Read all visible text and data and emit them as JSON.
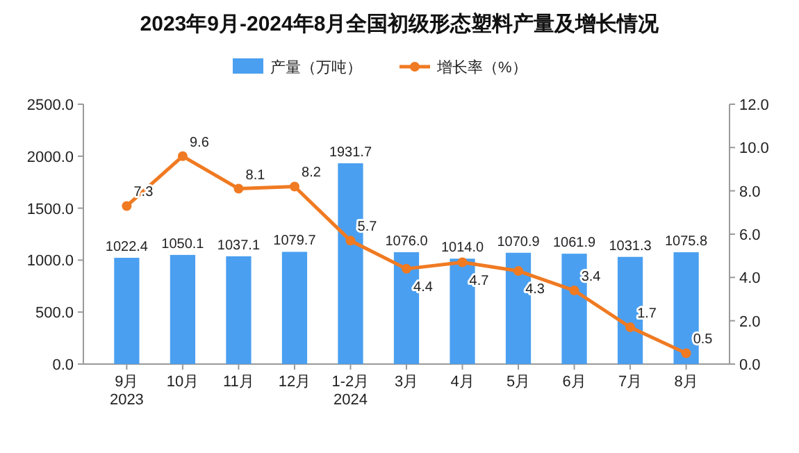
{
  "chart_data": {
    "type": "bar",
    "title": "2023年9月-2024年8月全国初级形态塑料产量及增长情况",
    "categories": [
      "9月\n2023",
      "10月",
      "11月",
      "12月",
      "1-2月\n2024",
      "3月",
      "4月",
      "5月",
      "6月",
      "7月",
      "8月"
    ],
    "series": [
      {
        "name": "产量（万吨）",
        "color": "#4a9ff0",
        "values": [
          1022.4,
          1050.1,
          1037.1,
          1079.7,
          1931.7,
          1076.0,
          1014.0,
          1070.9,
          1061.9,
          1031.3,
          1075.8
        ],
        "value_labels": [
          "1022.4",
          "1050.1",
          "1037.1",
          "1079.7",
          "1931.7",
          "1076.0",
          "1014.0",
          "1070.9",
          "1061.9",
          "1031.3",
          "1075.8"
        ]
      },
      {
        "name": "增长率（%）",
        "type": "line",
        "axis": "y2",
        "color": "#f07a22",
        "values": [
          7.3,
          9.6,
          8.1,
          8.2,
          5.7,
          4.4,
          4.7,
          4.3,
          3.4,
          1.7,
          0.5
        ],
        "value_labels": [
          "7.3",
          "9.6",
          "8.1",
          "8.2",
          "5.7",
          "4.4",
          "4.7",
          "4.3",
          "3.4",
          "1.7",
          "0.5"
        ]
      }
    ],
    "ylim": [
      0,
      2500
    ],
    "yticks": [
      {
        "value": 0,
        "label": "0.0"
      },
      {
        "value": 500,
        "label": "500.0"
      },
      {
        "value": 1000,
        "label": "1000.0"
      },
      {
        "value": 1500,
        "label": "1500.0"
      },
      {
        "value": 2000,
        "label": "2000.0"
      },
      {
        "value": 2500,
        "label": "2500.0"
      }
    ],
    "y2lim": [
      0,
      12
    ],
    "y2ticks": [
      {
        "value": 0,
        "label": "0.0"
      },
      {
        "value": 2,
        "label": "2.0"
      },
      {
        "value": 4,
        "label": "4.0"
      },
      {
        "value": 6,
        "label": "6.0"
      },
      {
        "value": 8,
        "label": "8.0"
      },
      {
        "value": 10,
        "label": "10.0"
      },
      {
        "value": 12,
        "label": "12.0"
      }
    ],
    "legend": "top",
    "marker": "circle"
  }
}
